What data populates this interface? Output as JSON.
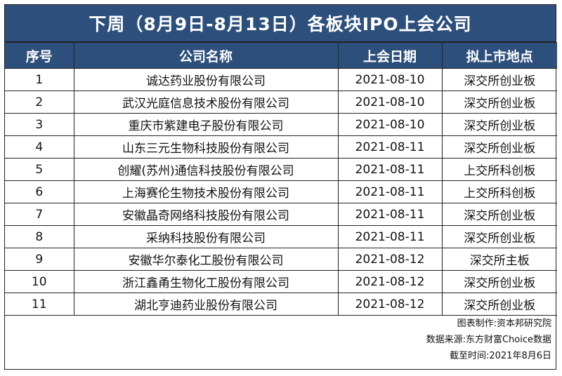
{
  "title": "下周（8月9日-8月13日）各板块IPO上会公司",
  "columns": [
    "序号",
    "公司名称",
    "上会日期",
    "拟上市地点"
  ],
  "rows": [
    [
      "1",
      "诚达药业股份有限公司",
      "2021-08-10",
      "深交所创业板"
    ],
    [
      "2",
      "武汉光庭信息技术股份有限公司",
      "2021-08-10",
      "深交所创业板"
    ],
    [
      "3",
      "重庆市紫建电子股份有限公司",
      "2021-08-10",
      "深交所创业板"
    ],
    [
      "4",
      "山东三元生物科技股份有限公司",
      "2021-08-11",
      "深交所创业板"
    ],
    [
      "5",
      "创耀(苏州)通信科技股份有限公司",
      "2021-08-11",
      "上交所科创板"
    ],
    [
      "6",
      "上海赛伦生物技术股份有限公司",
      "2021-08-11",
      "上交所科创板"
    ],
    [
      "7",
      "安徽晶奇网络科技股份有限公司",
      "2021-08-11",
      "深交所创业板"
    ],
    [
      "8",
      "采纳科技股份有限公司",
      "2021-08-11",
      "深交所创业板"
    ],
    [
      "9",
      "安徽华尔泰化工股份有限公司",
      "2021-08-12",
      "深交所主板"
    ],
    [
      "10",
      "浙江鑫甬生物化工股份有限公司",
      "2021-08-12",
      "深交所创业板"
    ],
    [
      "11",
      "湖北亨迪药业股份有限公司",
      "2021-08-12",
      "深交所创业板"
    ]
  ],
  "footer": {
    "maker": "图表制作:资本邦研究院",
    "source": "数据来源:东方财富Choice数据",
    "cutoff": "截至时间:2021年8月6日"
  },
  "colors": {
    "header_bg": "#2d4f7c",
    "header_text": "#ffffff",
    "border": "#222222"
  }
}
